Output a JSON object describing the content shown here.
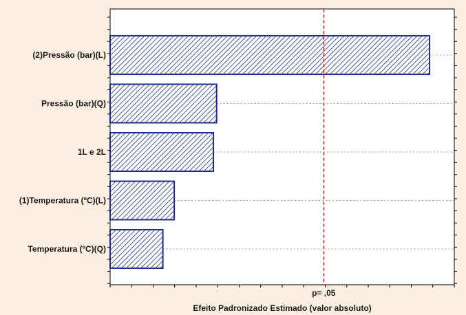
{
  "chart_data": {
    "type": "bar",
    "orientation": "horizontal",
    "categories": [
      "(2)Pressão (bar)(L)",
      "Pressão (bar)(Q)",
      "1L e 2L",
      "(1)Temperatura (ºC)(L)",
      "Temperatura (ºC)(Q)"
    ],
    "values": [
      14.85,
      4.95,
      4.8,
      2.98,
      2.45
    ],
    "xlim": [
      0,
      16
    ],
    "reference_line": {
      "value": 9.93,
      "label": "p= ,05",
      "color": "#e0302a",
      "style": "dashed"
    },
    "xlabel": "Efeito Padronizado Estimado (valor absoluto)",
    "ylabel": "",
    "title": "",
    "bar_fill": "hatched",
    "bar_color": "#1e2c8a",
    "grid": "dotted horizontal guides to right of bars",
    "legend": "none"
  }
}
